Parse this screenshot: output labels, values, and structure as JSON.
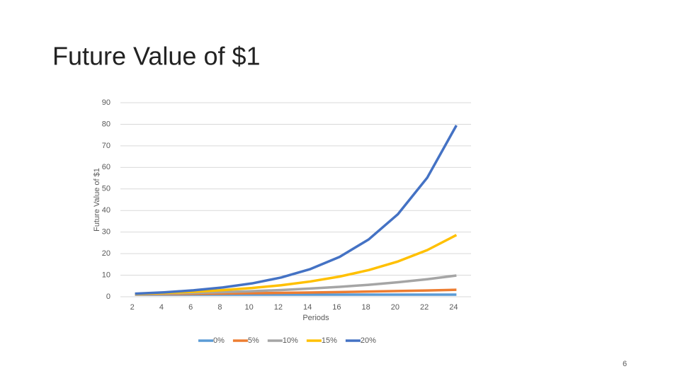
{
  "slide_title": "Future Value of $1",
  "page_number": "6",
  "chart_data": {
    "type": "line",
    "x_label": "Periods",
    "y_label": "Future Value of $1",
    "categories": [
      "2",
      "4",
      "6",
      "8",
      "10",
      "12",
      "14",
      "16",
      "18",
      "20",
      "22",
      "24"
    ],
    "series": [
      {
        "name": "0%",
        "color": "#5b9bd5",
        "values": [
          1,
          1,
          1,
          1,
          1,
          1,
          1,
          1,
          1,
          1,
          1,
          1
        ]
      },
      {
        "name": "5%",
        "color": "#ed7d31",
        "values": [
          1.1,
          1.22,
          1.34,
          1.48,
          1.63,
          1.8,
          1.98,
          2.18,
          2.41,
          2.65,
          2.93,
          3.23
        ]
      },
      {
        "name": "10%",
        "color": "#a5a5a5",
        "values": [
          1.21,
          1.46,
          1.77,
          2.14,
          2.59,
          3.14,
          3.8,
          4.59,
          5.56,
          6.73,
          8.14,
          9.85
        ]
      },
      {
        "name": "15%",
        "color": "#ffc000",
        "values": [
          1.32,
          1.75,
          2.31,
          3.06,
          4.05,
          5.35,
          7.08,
          9.36,
          12.38,
          16.37,
          21.64,
          28.63
        ]
      },
      {
        "name": "20%",
        "color": "#4472c4",
        "values": [
          1.44,
          2.07,
          2.99,
          4.3,
          6.19,
          8.92,
          12.84,
          18.49,
          26.62,
          38.34,
          55.21,
          79.5
        ]
      }
    ],
    "ylim": [
      0,
      90
    ],
    "yticks": [
      0,
      10,
      20,
      30,
      40,
      50,
      60,
      70,
      80,
      90
    ],
    "grid": true,
    "legend": "bottom"
  }
}
